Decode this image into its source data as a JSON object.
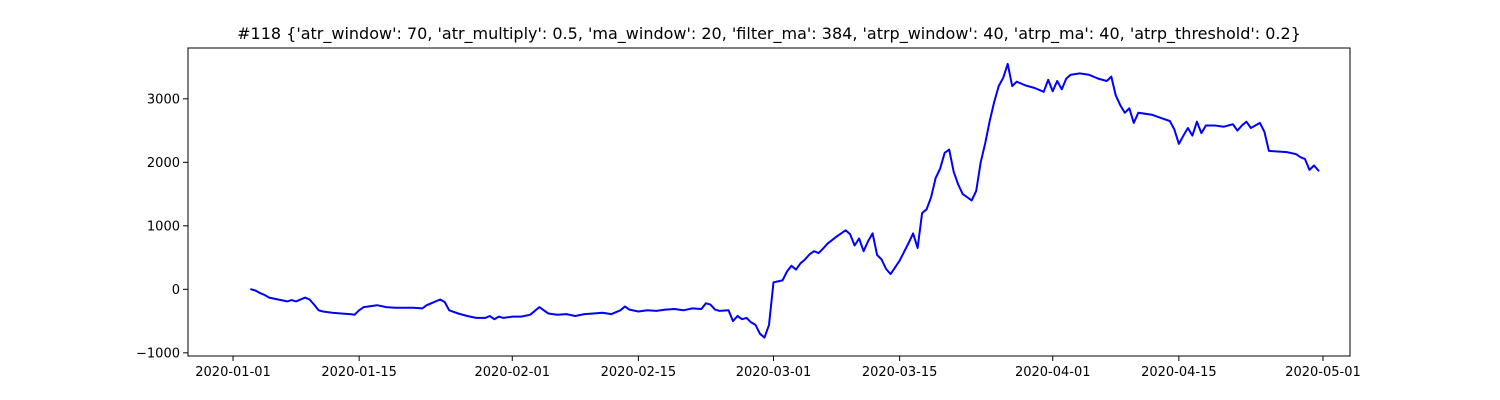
{
  "chart_data": {
    "type": "line",
    "title": "#118 {'atr_window': 70, 'atr_multiply': 0.5, 'ma_window': 20, 'filter_ma': 384, 'atrp_window': 40, 'atrp_ma': 40, 'atrp_threshold': 0.2}",
    "xlabel": "",
    "ylabel": "",
    "x_type": "date",
    "xlim": [
      "2019-12-27",
      "2020-05-04"
    ],
    "ylim": [
      -1050,
      3800
    ],
    "x_ticks": [
      {
        "value": "2020-01-01",
        "label": "2020-01-01"
      },
      {
        "value": "2020-01-15",
        "label": "2020-01-15"
      },
      {
        "value": "2020-02-01",
        "label": "2020-02-01"
      },
      {
        "value": "2020-02-15",
        "label": "2020-02-15"
      },
      {
        "value": "2020-03-01",
        "label": "2020-03-01"
      },
      {
        "value": "2020-03-15",
        "label": "2020-03-15"
      },
      {
        "value": "2020-04-01",
        "label": "2020-04-01"
      },
      {
        "value": "2020-04-15",
        "label": "2020-04-15"
      },
      {
        "value": "2020-05-01",
        "label": "2020-05-01"
      }
    ],
    "y_ticks": [
      {
        "value": -1000,
        "label": "−1000"
      },
      {
        "value": 0,
        "label": "0"
      },
      {
        "value": 1000,
        "label": "1000"
      },
      {
        "value": 2000,
        "label": "2000"
      },
      {
        "value": 3000,
        "label": "3000"
      }
    ],
    "grid": false,
    "series": [
      {
        "color": "#0000ff",
        "points": [
          [
            "2020-01-03",
            0
          ],
          [
            "2020-01-03T12",
            -20
          ],
          [
            "2020-01-04",
            -60
          ],
          [
            "2020-01-04T12",
            -90
          ],
          [
            "2020-01-05",
            -130
          ],
          [
            "2020-01-06",
            -160
          ],
          [
            "2020-01-07",
            -190
          ],
          [
            "2020-01-07T12",
            -170
          ],
          [
            "2020-01-08",
            -190
          ],
          [
            "2020-01-09",
            -130
          ],
          [
            "2020-01-09T12",
            -160
          ],
          [
            "2020-01-10",
            -240
          ],
          [
            "2020-01-10T12",
            -330
          ],
          [
            "2020-01-11",
            -350
          ],
          [
            "2020-01-12",
            -370
          ],
          [
            "2020-01-13",
            -380
          ],
          [
            "2020-01-14",
            -390
          ],
          [
            "2020-01-14T12",
            -400
          ],
          [
            "2020-01-15",
            -330
          ],
          [
            "2020-01-15T12",
            -280
          ],
          [
            "2020-01-16",
            -270
          ],
          [
            "2020-01-17",
            -250
          ],
          [
            "2020-01-18",
            -280
          ],
          [
            "2020-01-19",
            -290
          ],
          [
            "2020-01-20",
            -290
          ],
          [
            "2020-01-21",
            -290
          ],
          [
            "2020-01-22",
            -300
          ],
          [
            "2020-01-22T12",
            -250
          ],
          [
            "2020-01-23",
            -220
          ],
          [
            "2020-01-24",
            -160
          ],
          [
            "2020-01-24T12",
            -200
          ],
          [
            "2020-01-25",
            -330
          ],
          [
            "2020-01-26",
            -380
          ],
          [
            "2020-01-27",
            -420
          ],
          [
            "2020-01-28",
            -450
          ],
          [
            "2020-01-29",
            -450
          ],
          [
            "2020-01-29T12",
            -420
          ],
          [
            "2020-01-30",
            -470
          ],
          [
            "2020-01-30T12",
            -430
          ],
          [
            "2020-01-31",
            -450
          ],
          [
            "2020-02-01",
            -430
          ],
          [
            "2020-02-02",
            -430
          ],
          [
            "2020-02-03",
            -400
          ],
          [
            "2020-02-04",
            -280
          ],
          [
            "2020-02-05",
            -380
          ],
          [
            "2020-02-06",
            -400
          ],
          [
            "2020-02-07",
            -390
          ],
          [
            "2020-02-08",
            -420
          ],
          [
            "2020-02-09",
            -390
          ],
          [
            "2020-02-10",
            -380
          ],
          [
            "2020-02-11",
            -370
          ],
          [
            "2020-02-12",
            -390
          ],
          [
            "2020-02-13",
            -330
          ],
          [
            "2020-02-13T12",
            -270
          ],
          [
            "2020-02-14",
            -320
          ],
          [
            "2020-02-15",
            -350
          ],
          [
            "2020-02-16",
            -330
          ],
          [
            "2020-02-17",
            -340
          ],
          [
            "2020-02-18",
            -320
          ],
          [
            "2020-02-19",
            -310
          ],
          [
            "2020-02-20",
            -330
          ],
          [
            "2020-02-21",
            -300
          ],
          [
            "2020-02-22",
            -310
          ],
          [
            "2020-02-22T12",
            -220
          ],
          [
            "2020-02-23",
            -240
          ],
          [
            "2020-02-23T12",
            -320
          ],
          [
            "2020-02-24",
            -340
          ],
          [
            "2020-02-25",
            -330
          ],
          [
            "2020-02-25T12",
            -500
          ],
          [
            "2020-02-26",
            -420
          ],
          [
            "2020-02-26T12",
            -470
          ],
          [
            "2020-02-27",
            -450
          ],
          [
            "2020-02-27T12",
            -520
          ],
          [
            "2020-02-28",
            -560
          ],
          [
            "2020-02-28T12",
            -700
          ],
          [
            "2020-02-29",
            -760
          ],
          [
            "2020-02-29T12",
            -560
          ],
          [
            "2020-03-01",
            110
          ],
          [
            "2020-03-02",
            140
          ],
          [
            "2020-03-02T12",
            280
          ],
          [
            "2020-03-03",
            370
          ],
          [
            "2020-03-03T12",
            310
          ],
          [
            "2020-03-04",
            410
          ],
          [
            "2020-03-04T12",
            470
          ],
          [
            "2020-03-05",
            550
          ],
          [
            "2020-03-05T12",
            600
          ],
          [
            "2020-03-06",
            570
          ],
          [
            "2020-03-06T12",
            640
          ],
          [
            "2020-03-07",
            720
          ],
          [
            "2020-03-08",
            830
          ],
          [
            "2020-03-09",
            930
          ],
          [
            "2020-03-09T12",
            870
          ],
          [
            "2020-03-10",
            690
          ],
          [
            "2020-03-10T12",
            800
          ],
          [
            "2020-03-11",
            600
          ],
          [
            "2020-03-11T12",
            760
          ],
          [
            "2020-03-12",
            880
          ],
          [
            "2020-03-12T12",
            540
          ],
          [
            "2020-03-13",
            470
          ],
          [
            "2020-03-13T12",
            320
          ],
          [
            "2020-03-14",
            240
          ],
          [
            "2020-03-15",
            450
          ],
          [
            "2020-03-16",
            730
          ],
          [
            "2020-03-16T12",
            880
          ],
          [
            "2020-03-17",
            650
          ],
          [
            "2020-03-17T12",
            1200
          ],
          [
            "2020-03-18",
            1260
          ],
          [
            "2020-03-18T12",
            1450
          ],
          [
            "2020-03-19",
            1750
          ],
          [
            "2020-03-19T12",
            1900
          ],
          [
            "2020-03-20",
            2150
          ],
          [
            "2020-03-20T12",
            2200
          ],
          [
            "2020-03-21",
            1850
          ],
          [
            "2020-03-21T12",
            1650
          ],
          [
            "2020-03-22",
            1500
          ],
          [
            "2020-03-23",
            1400
          ],
          [
            "2020-03-23T12",
            1550
          ],
          [
            "2020-03-24",
            2000
          ],
          [
            "2020-03-24T12",
            2300
          ],
          [
            "2020-03-25",
            2650
          ],
          [
            "2020-03-25T12",
            2950
          ],
          [
            "2020-03-26",
            3200
          ],
          [
            "2020-03-26T12",
            3330
          ],
          [
            "2020-03-27",
            3550
          ],
          [
            "2020-03-27T12",
            3200
          ],
          [
            "2020-03-28",
            3270
          ],
          [
            "2020-03-29",
            3210
          ],
          [
            "2020-03-30",
            3170
          ],
          [
            "2020-03-31",
            3110
          ],
          [
            "2020-03-31T12",
            3300
          ],
          [
            "2020-04-01",
            3120
          ],
          [
            "2020-04-01T12",
            3280
          ],
          [
            "2020-04-02",
            3150
          ],
          [
            "2020-04-02T12",
            3320
          ],
          [
            "2020-04-03",
            3380
          ],
          [
            "2020-04-04",
            3400
          ],
          [
            "2020-04-05",
            3380
          ],
          [
            "2020-04-06",
            3320
          ],
          [
            "2020-04-07",
            3280
          ],
          [
            "2020-04-07T12",
            3350
          ],
          [
            "2020-04-08",
            3050
          ],
          [
            "2020-04-08T12",
            2900
          ],
          [
            "2020-04-09",
            2780
          ],
          [
            "2020-04-09T12",
            2850
          ],
          [
            "2020-04-10",
            2620
          ],
          [
            "2020-04-10T12",
            2780
          ],
          [
            "2020-04-11",
            2770
          ],
          [
            "2020-04-12",
            2750
          ],
          [
            "2020-04-13",
            2700
          ],
          [
            "2020-04-14",
            2650
          ],
          [
            "2020-04-14T12",
            2520
          ],
          [
            "2020-04-15",
            2290
          ],
          [
            "2020-04-15T12",
            2420
          ],
          [
            "2020-04-16",
            2540
          ],
          [
            "2020-04-16T12",
            2420
          ],
          [
            "2020-04-17",
            2640
          ],
          [
            "2020-04-17T12",
            2460
          ],
          [
            "2020-04-18",
            2580
          ],
          [
            "2020-04-19",
            2580
          ],
          [
            "2020-04-20",
            2560
          ],
          [
            "2020-04-21",
            2600
          ],
          [
            "2020-04-21T12",
            2500
          ],
          [
            "2020-04-22",
            2580
          ],
          [
            "2020-04-22T12",
            2640
          ],
          [
            "2020-04-23",
            2540
          ],
          [
            "2020-04-24",
            2620
          ],
          [
            "2020-04-24T12",
            2480
          ],
          [
            "2020-04-25",
            2180
          ],
          [
            "2020-04-26",
            2170
          ],
          [
            "2020-04-27",
            2160
          ],
          [
            "2020-04-28",
            2130
          ],
          [
            "2020-04-28T12",
            2080
          ],
          [
            "2020-04-29",
            2050
          ],
          [
            "2020-04-29T12",
            1880
          ],
          [
            "2020-04-30",
            1950
          ],
          [
            "2020-04-30T12",
            1870
          ]
        ]
      }
    ]
  }
}
